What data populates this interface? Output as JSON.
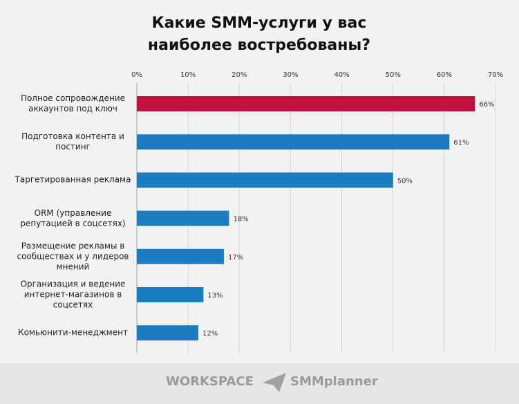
{
  "chart_data": {
    "type": "barh",
    "title": "Какие SMM-услуги у вас наиболее востребованы?",
    "categories": [
      "Полное сопровождение аккаунтов под ключ",
      "Подготовка контента и постинг",
      "Таргетированная реклама",
      "ORM (управление репутацией в соцсетях)",
      "Размещение рекламы в сообществах и у лидеров мнений",
      "Организация и ведение интернет-магазинов в соцсетях",
      "Комьюнити-менеджмент"
    ],
    "values": [
      66,
      61,
      50,
      18,
      17,
      13,
      12
    ],
    "value_labels": [
      "66%",
      "61%",
      "50%",
      "18%",
      "17%",
      "13%",
      "12%"
    ],
    "colors": [
      "#c0123c",
      "#1b7cc0",
      "#1b7cc0",
      "#1b7cc0",
      "#1b7cc0",
      "#1b7cc0",
      "#1b7cc0"
    ],
    "xlim": [
      0,
      70
    ],
    "xticks": [
      {
        "value": 0,
        "label": "0%"
      },
      {
        "value": 10,
        "label": "10%"
      },
      {
        "value": 20,
        "label": "20%"
      },
      {
        "value": 30,
        "label": "30%"
      },
      {
        "value": 40,
        "label": "40%"
      },
      {
        "value": 50,
        "label": "50%"
      },
      {
        "value": 60,
        "label": "60%"
      },
      {
        "value": 70,
        "label": "70%"
      }
    ],
    "grid": true
  },
  "footer": {
    "logos": [
      "WORKSPACE",
      "SMMplanner"
    ]
  }
}
